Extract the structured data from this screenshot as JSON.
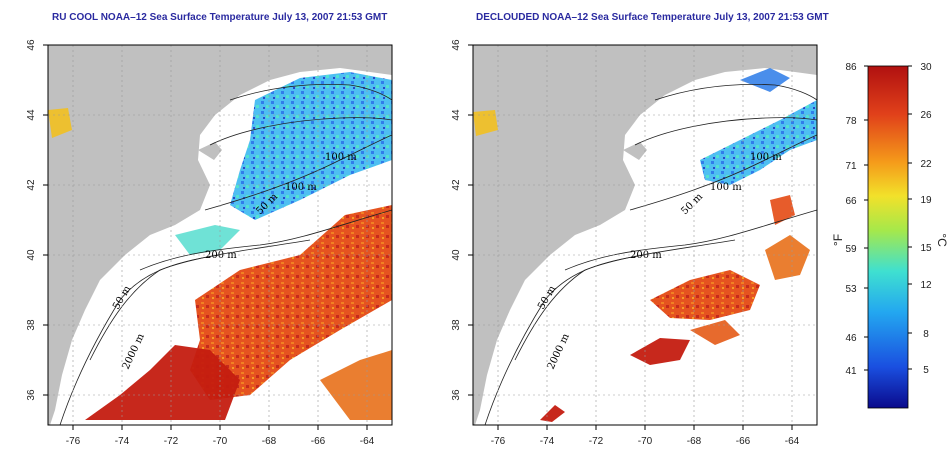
{
  "left_panel": {
    "title": "RU COOL NOAA–12 Sea Surface Temperature July 13, 2007 21:53 GMT"
  },
  "right_panel": {
    "title": "DECLOUDED NOAA–12 Sea Surface Temperature July 13, 2007 21:53 GMT"
  },
  "map": {
    "lon_ticks": [
      "-76",
      "-74",
      "-72",
      "-70",
      "-68",
      "-66",
      "-64"
    ],
    "lat_ticks": [
      "46",
      "44",
      "42",
      "40",
      "38",
      "36"
    ],
    "contour_labels": [
      "100 m",
      "100 m",
      "50 m",
      "200 m",
      "50 m",
      "2000 m"
    ],
    "land_color": "#c0c0c0",
    "ocean_color": "#ffffff"
  },
  "colorbar": {
    "fahrenheit_ticks": [
      "86",
      "78",
      "71",
      "66",
      "59",
      "53",
      "46",
      "41"
    ],
    "celsius_ticks": [
      "30",
      "26",
      "22",
      "19",
      "15",
      "12",
      "8",
      "5"
    ],
    "fahrenheit_unit": "°F",
    "celsius_unit": "°C",
    "colors": [
      "#0a0a8c",
      "#1a4fe0",
      "#23a7f0",
      "#3fe0d0",
      "#a6e84a",
      "#f2e12a",
      "#f59a1a",
      "#e0401a",
      "#b01010"
    ]
  }
}
